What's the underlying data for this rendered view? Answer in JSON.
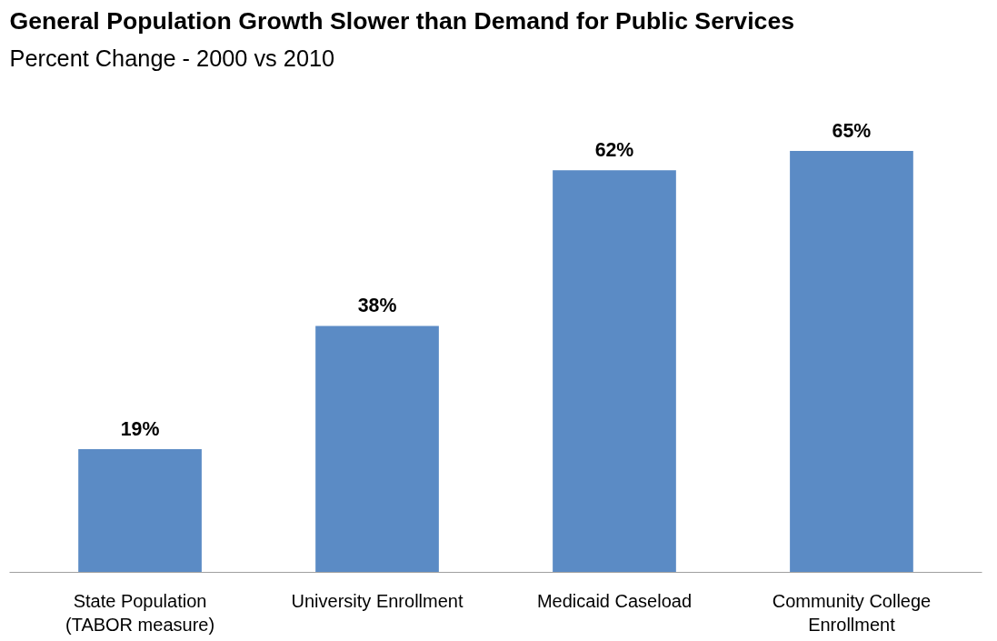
{
  "chart_data": {
    "type": "bar",
    "title": "General Population Growth Slower than Demand for Public Services",
    "subtitle": "Percent Change - 2000 vs 2010",
    "categories": [
      "State Population\n(TABOR measure)",
      "University Enrollment",
      "Medicaid Caseload",
      "Community College\nEnrollment"
    ],
    "values": [
      19,
      38,
      62,
      65
    ],
    "value_labels": [
      "19%",
      "38%",
      "62%",
      "65%"
    ],
    "color": "#5b8bc5",
    "grid": false
  }
}
